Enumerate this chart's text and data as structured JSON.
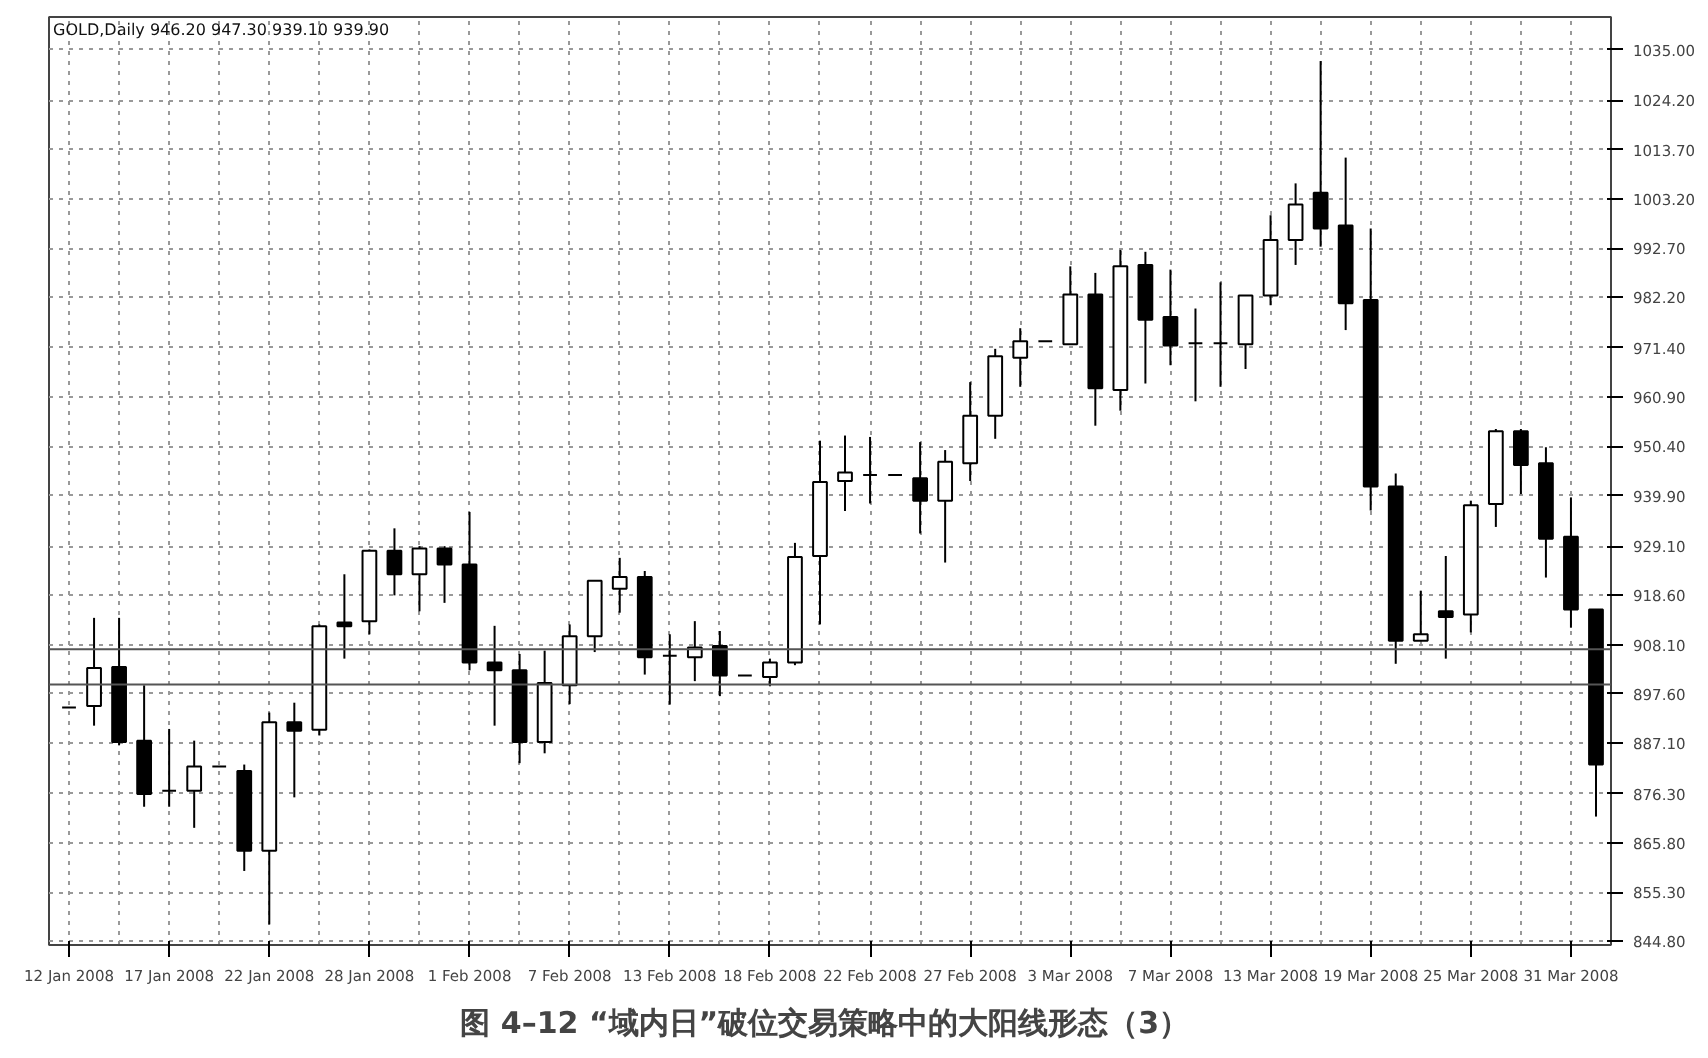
{
  "chart_data": {
    "type": "candlestick",
    "title": "GOLD,Daily  946.20 947.30 939.10 939.90",
    "annotations": [
      "图 4–12  “域内日”破位交易策略中的大阳线形态（3）"
    ],
    "categories": [
      "12 Jan 2008",
      null,
      null,
      null,
      "17 Jan 2008",
      null,
      null,
      null,
      "22 Jan 2008",
      null,
      null,
      null,
      "28 Jan 2008",
      null,
      null,
      null,
      "1 Feb 2008",
      null,
      null,
      null,
      "7 Feb 2008",
      null,
      null,
      null,
      "13 Feb 2008",
      null,
      null,
      null,
      "18 Feb 2008",
      null,
      null,
      null,
      "22 Feb 2008",
      null,
      null,
      null,
      "27 Feb 2008",
      null,
      null,
      null,
      "3 Mar 2008",
      null,
      null,
      null,
      "7 Mar 2008",
      null,
      null,
      null,
      "13 Mar 2008",
      null,
      null,
      null,
      "19 Mar 2008",
      null,
      null,
      null,
      "25 Mar 2008",
      null,
      null,
      null,
      "31 Mar 2008",
      null
    ],
    "color": "#000000",
    "ohlc": [
      [
        894.7,
        894.7,
        894.7,
        894.7
      ],
      [
        895.0,
        913.8,
        890.8,
        903.1
      ],
      [
        903.3,
        913.8,
        886.6,
        887.3
      ],
      [
        887.6,
        899.4,
        873.5,
        876.2
      ],
      [
        876.9,
        890.1,
        873.5,
        876.9
      ],
      [
        876.9,
        887.6,
        869.0,
        882.1
      ],
      [
        882.1,
        882.1,
        882.1,
        882.1
      ],
      [
        881.1,
        882.5,
        859.8,
        864.1
      ],
      [
        864.1,
        893.6,
        848.4,
        891.5
      ],
      [
        891.5,
        895.7,
        875.5,
        889.7
      ],
      [
        889.9,
        912.4,
        888.7,
        912.0
      ],
      [
        912.8,
        923.1,
        905.1,
        912.0
      ],
      [
        913.1,
        928.4,
        910.3,
        928.1
      ],
      [
        928.1,
        932.9,
        918.6,
        923.1
      ],
      [
        923.1,
        929.1,
        915.2,
        928.6
      ],
      [
        928.6,
        929.1,
        917.0,
        925.2
      ],
      [
        925.2,
        936.4,
        902.6,
        904.3
      ],
      [
        904.3,
        912.1,
        890.8,
        902.6
      ],
      [
        902.6,
        906.1,
        882.8,
        887.3
      ],
      [
        887.3,
        906.8,
        884.9,
        899.9
      ],
      [
        899.4,
        912.4,
        895.4,
        909.9
      ],
      [
        909.9,
        921.7,
        906.5,
        921.7
      ],
      [
        920.0,
        926.6,
        914.9,
        922.5
      ],
      [
        922.5,
        923.8,
        901.7,
        905.4
      ],
      [
        905.7,
        910.3,
        895.3,
        905.7
      ],
      [
        905.4,
        913.1,
        900.3,
        907.5
      ],
      [
        907.8,
        911.0,
        897.1,
        901.5
      ],
      [
        901.5,
        901.5,
        901.5,
        901.5
      ],
      [
        901.2,
        905.1,
        899.2,
        904.3
      ],
      [
        904.3,
        929.8,
        903.7,
        926.8
      ],
      [
        927.0,
        951.6,
        912.4,
        942.8
      ],
      [
        943.0,
        952.7,
        936.6,
        944.8
      ],
      [
        944.3,
        952.4,
        938.2,
        944.3
      ],
      [
        944.3,
        944.3,
        944.3,
        944.3
      ],
      [
        943.6,
        951.3,
        931.8,
        938.8
      ],
      [
        938.8,
        949.6,
        925.6,
        947.1
      ],
      [
        946.8,
        964.1,
        943.0,
        956.9
      ],
      [
        956.9,
        971.2,
        952.0,
        969.6
      ],
      [
        969.3,
        975.6,
        963.1,
        972.8
      ],
      [
        972.8,
        972.8,
        972.8,
        972.8
      ],
      [
        972.2,
        988.8,
        972.2,
        982.8
      ],
      [
        982.8,
        987.4,
        954.8,
        962.8
      ],
      [
        962.4,
        992.3,
        958.0,
        988.8
      ],
      [
        989.1,
        991.9,
        963.8,
        977.4
      ],
      [
        978.0,
        988.1,
        967.7,
        971.9
      ],
      [
        972.4,
        979.8,
        960.0,
        972.4
      ],
      [
        972.4,
        985.4,
        963.1,
        972.4
      ],
      [
        972.2,
        982.6,
        966.9,
        982.6
      ],
      [
        982.6,
        999.7,
        980.5,
        994.4
      ],
      [
        994.4,
        1006.5,
        989.1,
        1002.0
      ],
      [
        1004.5,
        1032.6,
        993.0,
        996.9
      ],
      [
        997.5,
        1012.0,
        975.2,
        980.9
      ],
      [
        981.6,
        996.9,
        936.7,
        941.8
      ],
      [
        941.8,
        944.6,
        904.0,
        908.9
      ],
      [
        908.9,
        919.6,
        908.9,
        910.3
      ],
      [
        915.2,
        927.0,
        905.1,
        914.0
      ],
      [
        914.5,
        938.8,
        910.7,
        937.8
      ],
      [
        938.1,
        954.1,
        933.2,
        953.6
      ],
      [
        953.6,
        954.1,
        940.2,
        946.4
      ],
      [
        946.8,
        950.2,
        922.4,
        930.7
      ],
      [
        931.1,
        939.5,
        911.7,
        915.6
      ],
      [
        915.6,
        915.6,
        871.4,
        882.5
      ]
    ],
    "ylim": [
      844.0,
      1042.0
    ],
    "yticks": [
      {
        "value": 1035.0,
        "label": "1035.00"
      },
      {
        "value": 1024.2,
        "label": "1024.20"
      },
      {
        "value": 1013.7,
        "label": "1013.70"
      },
      {
        "value": 1003.2,
        "label": "1003.20"
      },
      {
        "value": 992.7,
        "label": "992.70"
      },
      {
        "value": 982.2,
        "label": "982.20"
      },
      {
        "value": 971.4,
        "label": "971.40"
      },
      {
        "value": 960.9,
        "label": "960.90"
      },
      {
        "value": 950.4,
        "label": "950.40"
      },
      {
        "value": 939.9,
        "label": "939.90"
      },
      {
        "value": 929.1,
        "label": "929.10"
      },
      {
        "value": 918.6,
        "label": "918.60"
      },
      {
        "value": 908.1,
        "label": "908.10"
      },
      {
        "value": 897.6,
        "label": "897.60"
      },
      {
        "value": 887.1,
        "label": "887.10"
      },
      {
        "value": 876.3,
        "label": "876.30"
      },
      {
        "value": 865.8,
        "label": "865.80"
      },
      {
        "value": 855.3,
        "label": "855.30"
      },
      {
        "value": 844.8,
        "label": "844.80"
      }
    ],
    "ref_lines": [
      {
        "axis": "y",
        "value": 907.1,
        "color": "#555555"
      },
      {
        "axis": "y",
        "value": 899.6,
        "color": "#555555"
      }
    ],
    "grid": true
  }
}
